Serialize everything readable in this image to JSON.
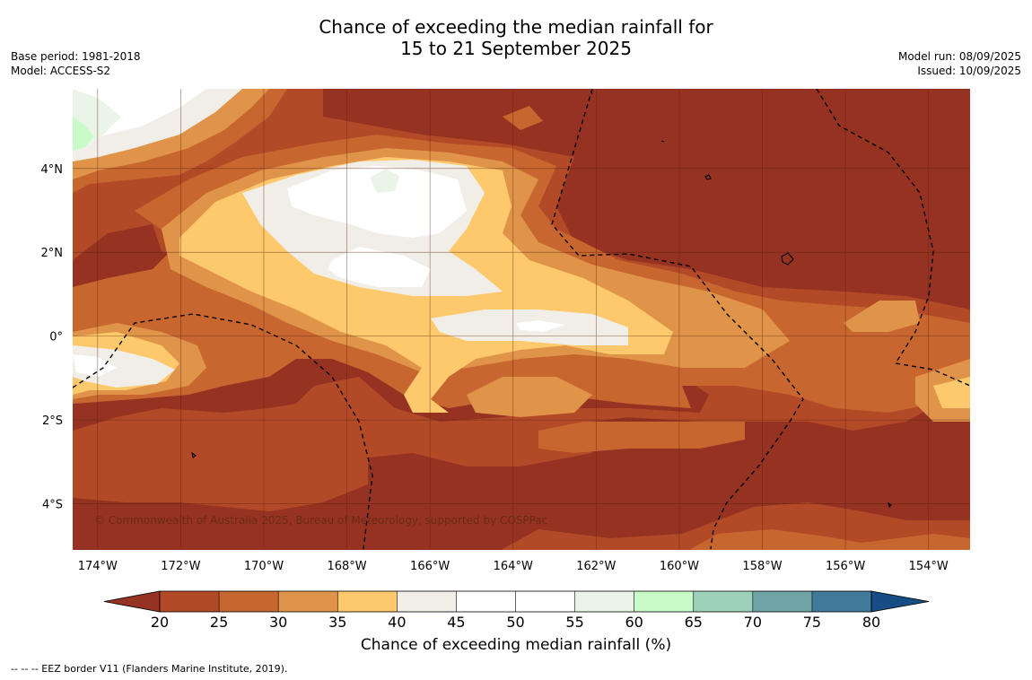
{
  "title": {
    "line1": "Chance of exceeding the median rainfall for",
    "line2": "15 to 21 September 2025"
  },
  "meta_left": {
    "base_period": "Base period: 1981-2018",
    "model": "Model: ACCESS-S2"
  },
  "meta_right": {
    "model_run": "Model run: 08/09/2025",
    "issued": "Issued: 10/09/2025"
  },
  "map": {
    "lon_range": [
      -174.6,
      -153.0
    ],
    "lat_range": [
      -5.1,
      5.9
    ],
    "lon_ticks": [
      "174°W",
      "172°W",
      "170°W",
      "168°W",
      "166°W",
      "164°W",
      "162°W",
      "160°W",
      "158°W",
      "156°W",
      "154°W"
    ],
    "lat_ticks": [
      "4°N",
      "2°N",
      "0°",
      "2°S",
      "4°S"
    ],
    "copyright": "© Commonwealth of Australia 2025, Bureau of Meteorology, supported by COSPPac"
  },
  "colorbar": {
    "ticks": [
      "20",
      "25",
      "30",
      "35",
      "40",
      "45",
      "50",
      "55",
      "60",
      "65",
      "70",
      "75",
      "80"
    ],
    "colors": [
      "#b24a28",
      "#c8662f",
      "#e0944a",
      "#fdc96c",
      "#f1ede7",
      "#ffffff",
      "#ffffff",
      "#eaf5e8",
      "#c8fbc8",
      "#9ed1ba",
      "#6fa5a7",
      "#3f7a9b"
    ],
    "under_color": "#963222",
    "over_color": "#164d85",
    "label": "Chance of exceeding median rainfall (%)"
  },
  "footnote": "--  --  -- EEZ border V11 (Flanders Marine Institute, 2019)."
}
